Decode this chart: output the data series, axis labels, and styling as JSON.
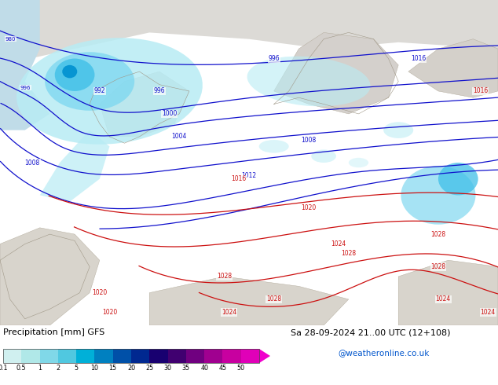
{
  "title_left": "Precipitation [mm] GFS",
  "title_right": "Sa 28-09-2024 21..00 UTC (12+108)",
  "credit": "@weatheronline.co.uk",
  "colorbar_values": [
    "0.1",
    "0.5",
    "1",
    "2",
    "5",
    "10",
    "15",
    "20",
    "25",
    "30",
    "35",
    "40",
    "45",
    "50"
  ],
  "colorbar_colors": [
    "#d0f0f0",
    "#b0e8e8",
    "#80d8e8",
    "#50c8e0",
    "#00b0d8",
    "#0080c0",
    "#0050a8",
    "#002890",
    "#180070",
    "#400070",
    "#700080",
    "#a00090",
    "#c800a0",
    "#e000b8",
    "#f000cc"
  ],
  "bg_color": "#ffffff",
  "credit_color": "#0055cc",
  "land_green": "#c8e8a0",
  "land_gray": "#d0ccc8",
  "ocean_blue": "#c0dce8",
  "precip_cyan1": "#b8ecf4",
  "precip_cyan2": "#80d8f0",
  "precip_cyan3": "#40c0e8",
  "precip_blue": "#0090d0",
  "contour_blue": "#1010cc",
  "contour_red": "#cc1010",
  "map_top_gray": "#e8e4e0"
}
